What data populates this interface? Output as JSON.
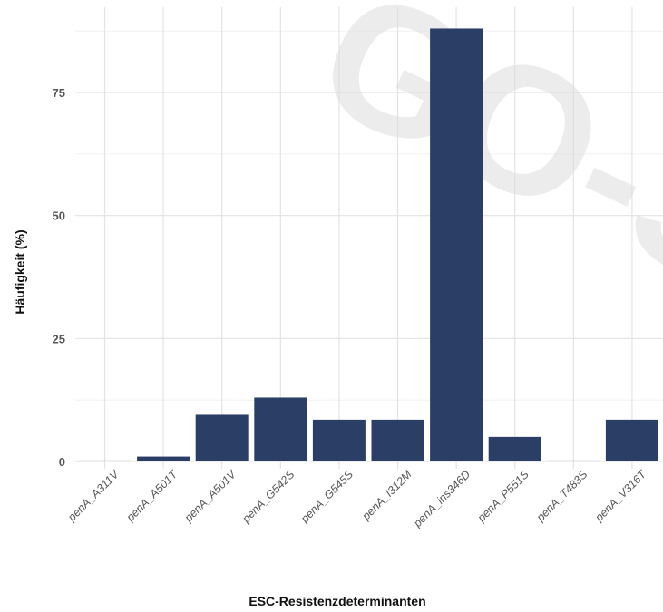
{
  "chart_data": {
    "type": "bar",
    "title": "",
    "xlabel": "ESC-Resistenzdeterminanten",
    "ylabel": "Häufigkeit (%)",
    "categories": [
      "penA_A311V",
      "penA_A501T",
      "penA_A501V",
      "penA_G542S",
      "penA_G545S",
      "penA_I312M",
      "penA_ins346D",
      "penA_P551S",
      "penA_T483S",
      "penA_V316T"
    ],
    "values": [
      0.2,
      1.0,
      9.5,
      13.0,
      8.5,
      8.5,
      88.0,
      5.0,
      0.2,
      8.5
    ],
    "yticks": [
      0,
      25,
      50,
      75
    ],
    "ylim": [
      0,
      90
    ],
    "grid": true,
    "bar_color": "#2b3e66"
  },
  "watermark": "GO-S"
}
